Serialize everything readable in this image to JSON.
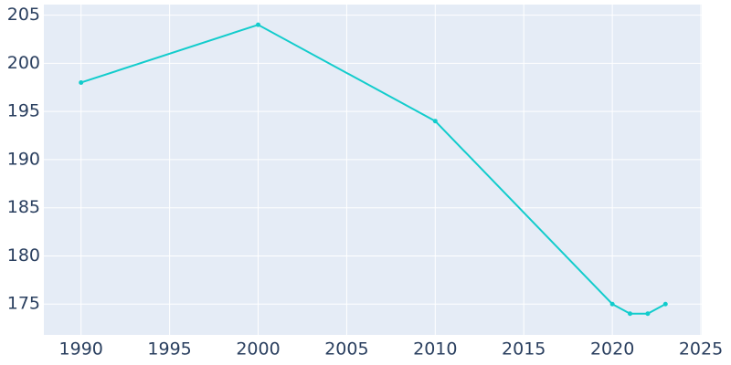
{
  "chart_data": {
    "type": "line",
    "x": [
      1990,
      2000,
      2010,
      2020,
      2021,
      2022,
      2023
    ],
    "series": [
      {
        "color": "#12cccc",
        "values": [
          198,
          204,
          194,
          175,
          174,
          174,
          175
        ]
      }
    ],
    "xlim": [
      1987.9,
      2025.05
    ],
    "xticks": [
      1990,
      1995,
      2000,
      2005,
      2010,
      2015,
      2020,
      2025
    ],
    "ylim": [
      171.8,
      206.1
    ],
    "yticks": [
      175,
      180,
      185,
      190,
      195,
      200,
      205
    ],
    "grid": true
  }
}
